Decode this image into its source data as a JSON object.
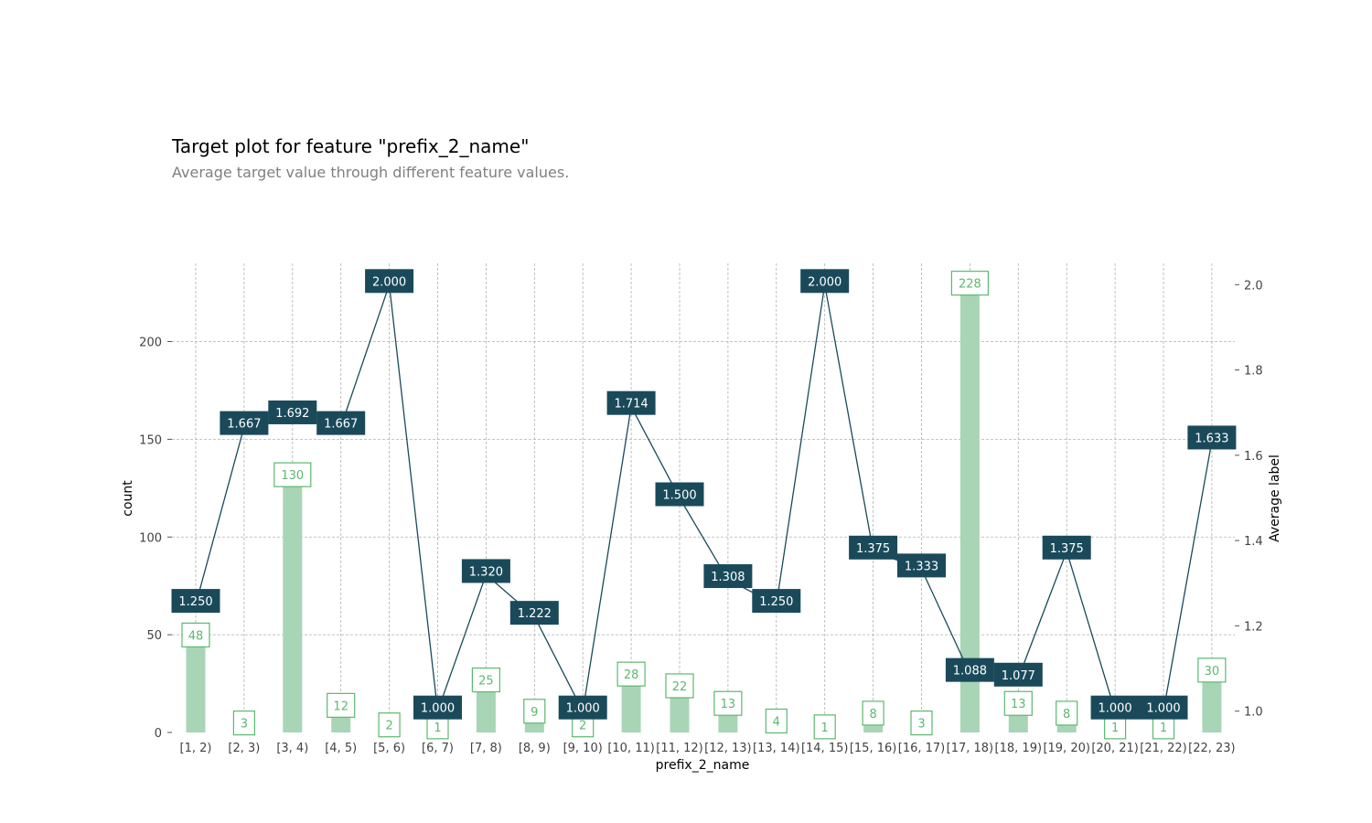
{
  "title": "Target plot for feature \"prefix_2_name\"",
  "subtitle": "Average target value through different feature values.",
  "chart_data": {
    "type": "bar",
    "categories": [
      "[1, 2)",
      "[2, 3)",
      "[3, 4)",
      "[4, 5)",
      "[5, 6)",
      "[6, 7)",
      "[7, 8)",
      "[8, 9)",
      "[9, 10)",
      "[10, 11)",
      "[11, 12)",
      "[12, 13)",
      "[13, 14)",
      "[14, 15)",
      "[15, 16)",
      "[16, 17)",
      "[17, 18)",
      "[18, 19)",
      "[19, 20)",
      "[20, 21)",
      "[21, 22)",
      "[22, 23)"
    ],
    "xlabel": "prefix_2_name",
    "ylabel": "count",
    "y2label": "Average label",
    "ylim": [
      0,
      240
    ],
    "y2lim": [
      0.95,
      2.05
    ],
    "yticks": [
      0,
      50,
      100,
      150,
      200
    ],
    "y2ticks": [
      "1.0",
      "1.2",
      "1.4",
      "1.6",
      "1.8",
      "2.0"
    ],
    "grid": true,
    "series": [
      {
        "type": "bar",
        "color": "#a8d5b5",
        "label_color": "#5cb86f",
        "values": [
          48,
          3,
          130,
          12,
          2,
          1,
          25,
          9,
          2,
          28,
          22,
          13,
          4,
          1,
          8,
          3,
          228,
          13,
          8,
          1,
          1,
          30
        ]
      },
      {
        "type": "line",
        "axis": "right",
        "color": "#1a4a5a",
        "values": [
          1.25,
          1.667,
          1.692,
          1.667,
          2.0,
          1.0,
          1.32,
          1.222,
          1.0,
          1.714,
          1.5,
          1.308,
          1.25,
          2.0,
          1.375,
          1.333,
          1.088,
          1.077,
          1.375,
          1.0,
          1.0,
          1.633
        ],
        "value_labels": [
          "1.250",
          "1.667",
          "1.692",
          "1.667",
          "2.000",
          "1.000",
          "1.320",
          "1.222",
          "1.000",
          "1.714",
          "1.500",
          "1.308",
          "1.250",
          "2.000",
          "1.375",
          "1.333",
          "1.088",
          "1.077",
          "1.375",
          "1.000",
          "1.000",
          "1.633"
        ]
      }
    ]
  }
}
